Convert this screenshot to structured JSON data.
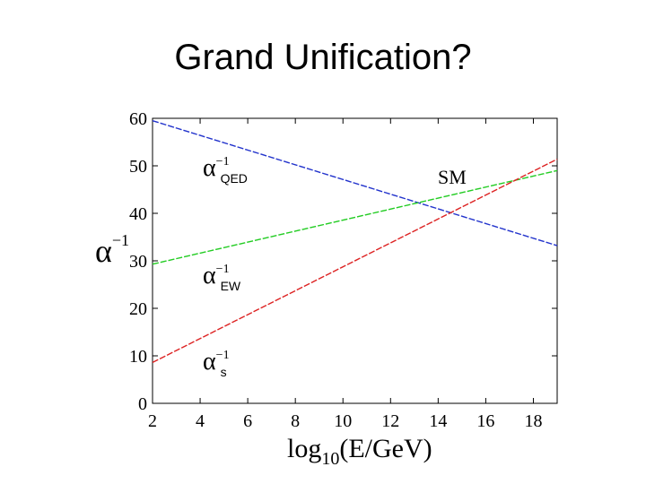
{
  "slide": {
    "title": "Grand Unification?"
  },
  "chart_data": {
    "type": "line",
    "xlabel": {
      "main": "log",
      "sub": "10",
      "rest": "(E/GeV)"
    },
    "ylabel": {
      "symbol": "α",
      "sup": "−1"
    },
    "xlim": [
      2,
      19
    ],
    "ylim": [
      0,
      60
    ],
    "xticks": [
      2,
      4,
      6,
      8,
      10,
      12,
      14,
      16,
      18
    ],
    "yticks": [
      0,
      10,
      20,
      30,
      40,
      50,
      60
    ],
    "grid": false,
    "series": [
      {
        "name": "QED",
        "color": "#2233cc",
        "dash": "dashed",
        "x": [
          2,
          19
        ],
        "y": [
          59.5,
          33.2
        ]
      },
      {
        "name": "EW",
        "color": "#22cc22",
        "dash": "dashed",
        "x": [
          2,
          19
        ],
        "y": [
          29.3,
          49.0
        ]
      },
      {
        "name": "s",
        "color": "#dd2222",
        "dash": "dashed",
        "x": [
          2,
          19
        ],
        "y": [
          8.6,
          51.4
        ]
      }
    ],
    "annotations": {
      "qed": {
        "symbol": "α",
        "sup": "−1",
        "sub": "QED"
      },
      "ew": {
        "symbol": "α",
        "sup": "−1",
        "sub": "EW"
      },
      "s": {
        "symbol": "α",
        "sup": "−1",
        "sub": "s"
      },
      "sm": "SM"
    }
  }
}
